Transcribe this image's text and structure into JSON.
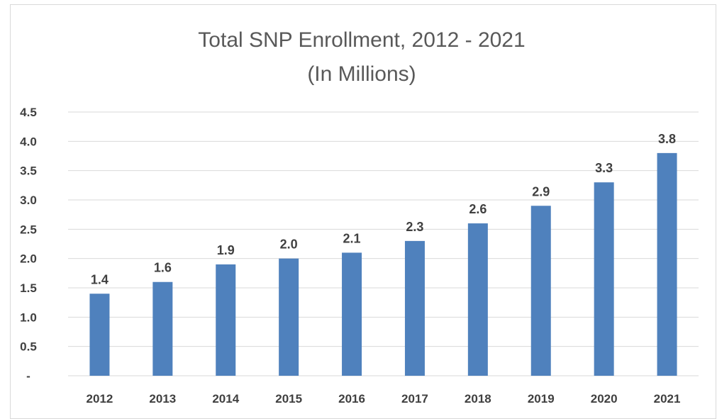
{
  "chart_data": {
    "type": "bar",
    "title_lines": [
      "Total SNP Enrollment, 2012 - 2021",
      "(In Millions)"
    ],
    "categories": [
      "2012",
      "2013",
      "2014",
      "2015",
      "2016",
      "2017",
      "2018",
      "2019",
      "2020",
      "2021"
    ],
    "values": [
      1.4,
      1.6,
      1.9,
      2.0,
      2.1,
      2.3,
      2.6,
      2.9,
      3.3,
      3.8
    ],
    "data_labels": [
      "1.4",
      "1.6",
      "1.9",
      "2.0",
      "2.1",
      "2.3",
      "2.6",
      "2.9",
      "3.3",
      "3.8"
    ],
    "y_ticks": [
      0,
      0.5,
      1.0,
      1.5,
      2.0,
      2.5,
      3.0,
      3.5,
      4.0,
      4.5
    ],
    "y_tick_labels": [
      "-",
      "0.5",
      "1.0",
      "1.5",
      "2.0",
      "2.5",
      "3.0",
      "3.5",
      "4.0",
      "4.5"
    ],
    "ylim": [
      0,
      4.5
    ],
    "grid": true,
    "legend": "none",
    "xlabel": "",
    "ylabel": "",
    "colors": {
      "bar": "#4f81bd",
      "grid": "#d9d9d9",
      "text": "#404040",
      "title": "#595959"
    }
  }
}
